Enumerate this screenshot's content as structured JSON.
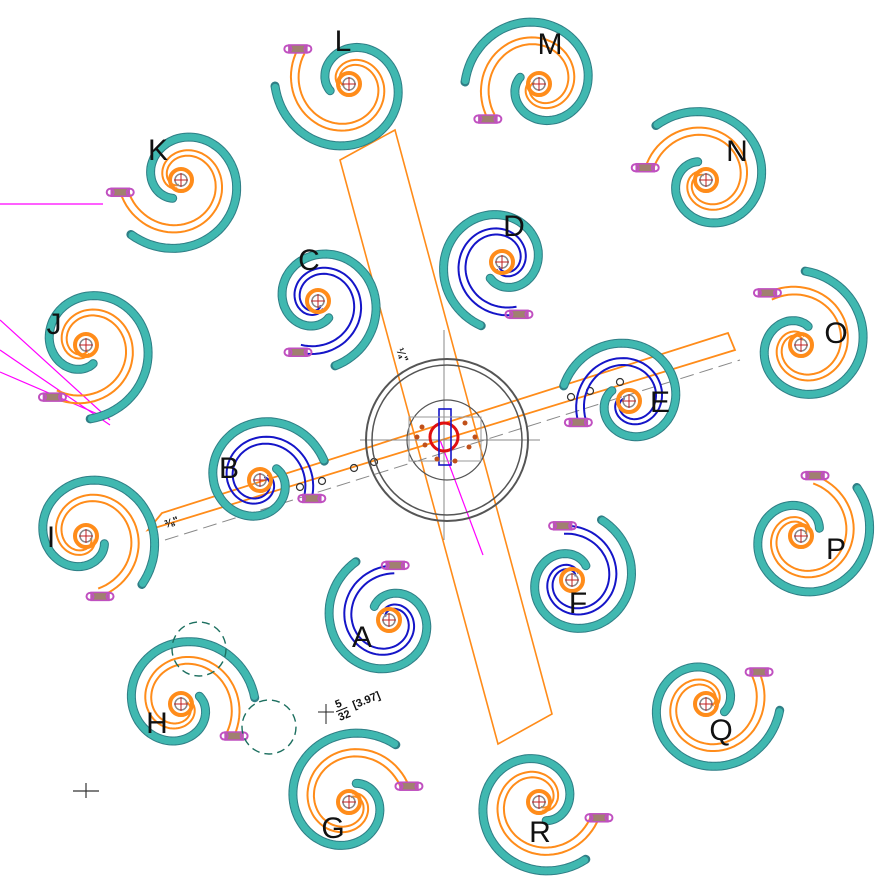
{
  "title": "",
  "colors": {
    "outer_scroll": "#ff8c1a",
    "inner_scroll": "#1515c8",
    "rope": "#40b8b0",
    "rope_shadow": "#2f7f86",
    "connector": "#c050c0",
    "hub": "#555555",
    "hub_red": "#e01010",
    "guide_line": "#ff00ff",
    "construction": "#888888"
  },
  "labels": {
    "outer": [
      "G",
      "H",
      "I",
      "J",
      "K",
      "L",
      "M",
      "N",
      "O",
      "P",
      "Q",
      "R"
    ],
    "inner": [
      "A",
      "B",
      "C",
      "D",
      "E",
      "F"
    ]
  },
  "dimensions": {
    "small_fraction_num": "5",
    "small_fraction_den": "32",
    "small_value": "[3.97]",
    "arm_fraction": "¼\"",
    "side_mark": "⅜\""
  }
}
